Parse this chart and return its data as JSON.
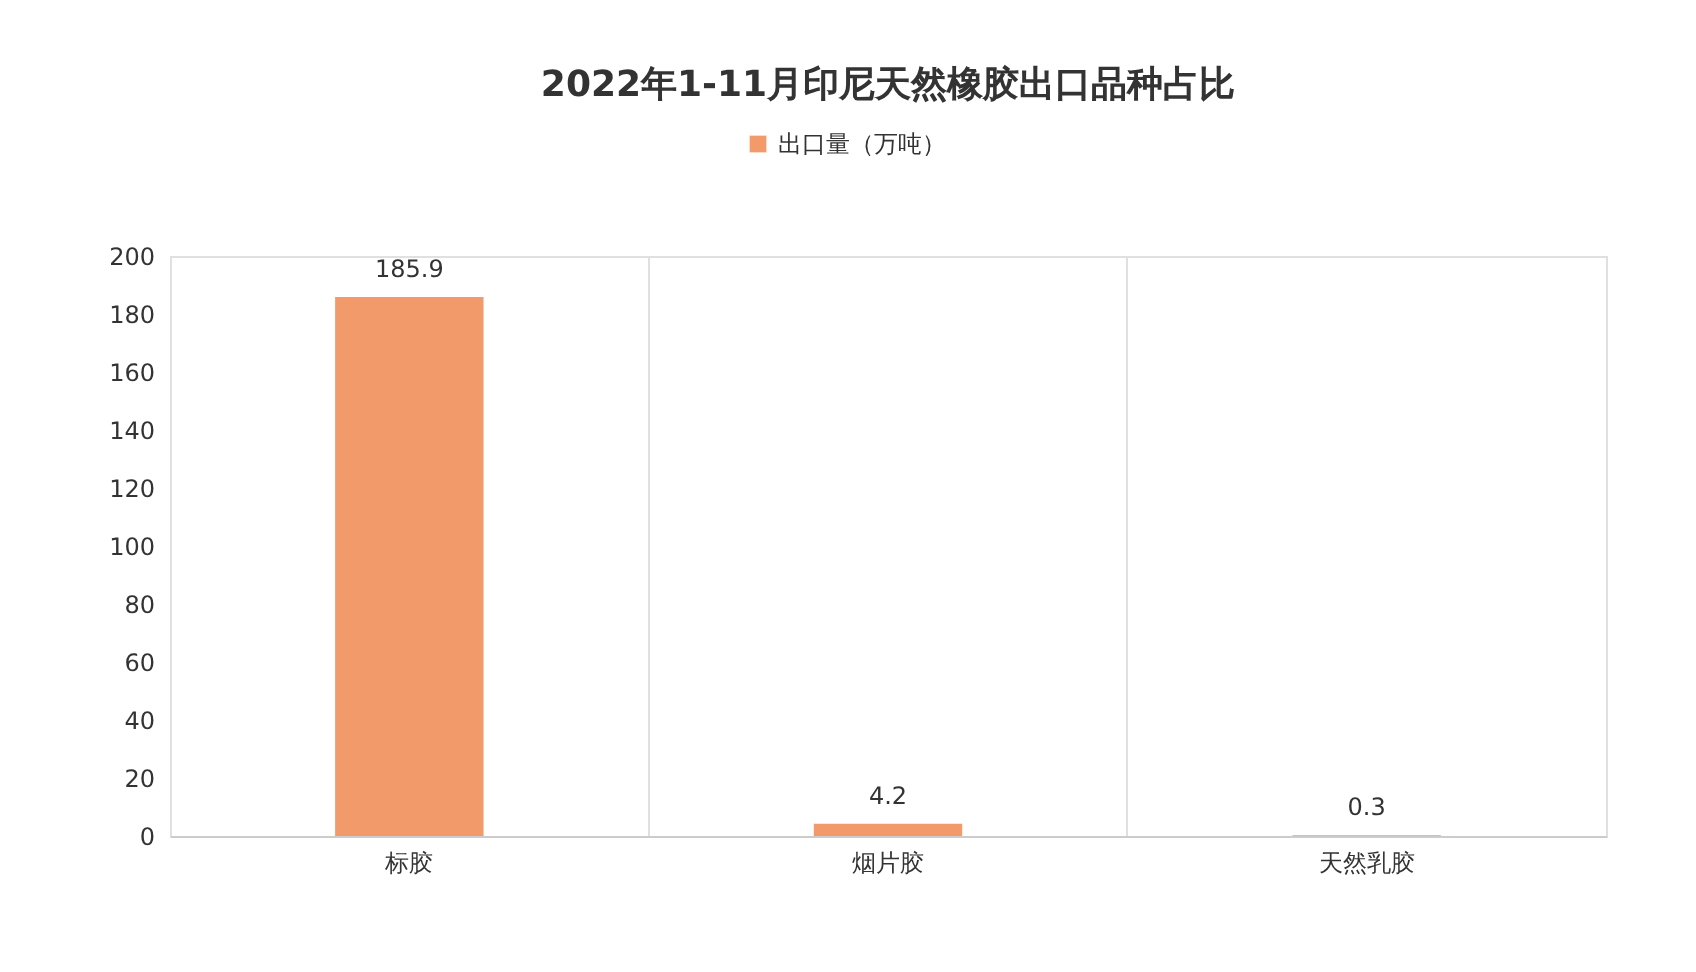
{
  "chart_data": {
    "type": "bar",
    "title": "2022年1-11月印尼天然橡胶出口品种占比",
    "categories": [
      "标胶",
      "烟片胶",
      "天然乳胶"
    ],
    "series": [
      {
        "name": "出口量（万吨）",
        "color": "#f39a6a",
        "values": [
          185.9,
          4.2,
          0.3
        ]
      }
    ],
    "ylim": [
      0,
      200
    ],
    "yticks": [
      0,
      20,
      40,
      60,
      80,
      100,
      120,
      140,
      160,
      180,
      200
    ],
    "grid": "x",
    "legend": "top",
    "data_labels": true
  }
}
